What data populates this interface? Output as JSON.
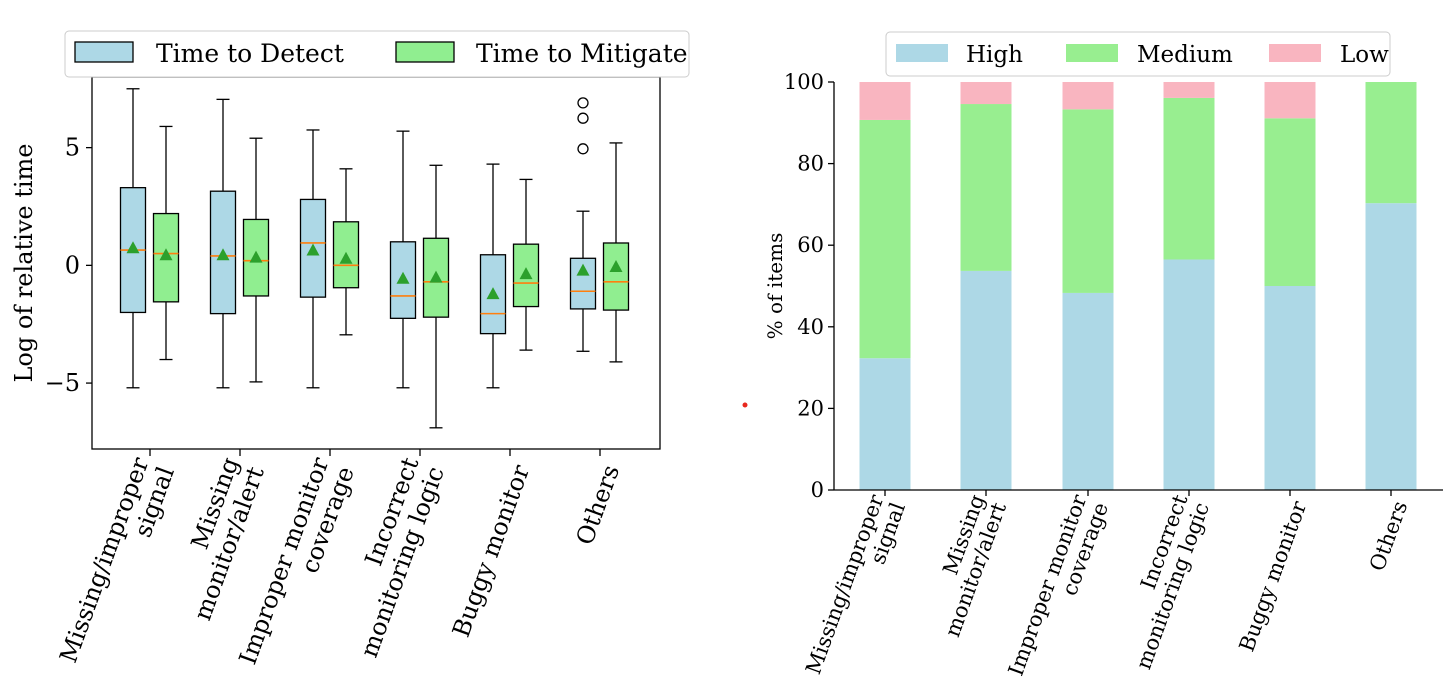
{
  "chart_data": [
    {
      "type": "box",
      "ylabel": "Log of relative time",
      "ylim": [
        -7.8,
        8.0
      ],
      "yticks": [
        -5,
        0,
        5
      ],
      "legend_position": "top",
      "categories": [
        [
          "Missing/improper",
          "signal"
        ],
        [
          "Missing",
          "monitor/alert"
        ],
        [
          "Improper monitor",
          "coverage"
        ],
        [
          "Incorrect",
          "monitoring logic"
        ],
        [
          "Buggy monitor"
        ],
        [
          "Others"
        ]
      ],
      "series": [
        {
          "name": "Time to Detect",
          "color": "#add8e6",
          "boxes": [
            {
              "whisker_low": -5.2,
              "q1": -2.0,
              "median": 0.65,
              "q3": 3.3,
              "whisker_high": 7.5,
              "mean": 0.75,
              "outliers": []
            },
            {
              "whisker_low": -5.2,
              "q1": -2.05,
              "median": 0.4,
              "q3": 3.15,
              "whisker_high": 7.05,
              "mean": 0.45,
              "outliers": []
            },
            {
              "whisker_low": -5.2,
              "q1": -1.35,
              "median": 0.95,
              "q3": 2.8,
              "whisker_high": 5.75,
              "mean": 0.65,
              "outliers": []
            },
            {
              "whisker_low": -5.2,
              "q1": -2.25,
              "median": -1.3,
              "q3": 1.0,
              "whisker_high": 5.7,
              "mean": -0.55,
              "outliers": []
            },
            {
              "whisker_low": -5.2,
              "q1": -2.9,
              "median": -2.05,
              "q3": 0.45,
              "whisker_high": 4.3,
              "mean": -1.2,
              "outliers": []
            },
            {
              "whisker_low": -3.65,
              "q1": -1.85,
              "median": -1.1,
              "q3": 0.3,
              "whisker_high": 2.3,
              "mean": -0.2,
              "outliers": [
                4.95,
                6.25,
                6.9
              ]
            }
          ]
        },
        {
          "name": "Time to Mitigate",
          "color": "#90ee90",
          "boxes": [
            {
              "whisker_low": -4.0,
              "q1": -1.55,
              "median": 0.5,
              "q3": 2.2,
              "whisker_high": 5.9,
              "mean": 0.45,
              "outliers": []
            },
            {
              "whisker_low": -4.95,
              "q1": -1.3,
              "median": 0.2,
              "q3": 1.95,
              "whisker_high": 5.4,
              "mean": 0.35,
              "outliers": []
            },
            {
              "whisker_low": -2.95,
              "q1": -0.95,
              "median": 0.0,
              "q3": 1.85,
              "whisker_high": 4.1,
              "mean": 0.3,
              "outliers": []
            },
            {
              "whisker_low": -6.9,
              "q1": -2.2,
              "median": -0.7,
              "q3": 1.15,
              "whisker_high": 4.25,
              "mean": -0.5,
              "outliers": []
            },
            {
              "whisker_low": -3.6,
              "q1": -1.75,
              "median": -0.75,
              "q3": 0.9,
              "whisker_high": 3.65,
              "mean": -0.35,
              "outliers": []
            },
            {
              "whisker_low": -4.1,
              "q1": -1.9,
              "median": -0.7,
              "q3": 0.95,
              "whisker_high": 5.2,
              "mean": -0.05,
              "outliers": []
            }
          ]
        }
      ],
      "median_color": "#ff7f0e",
      "mean_color": "#2ca02c"
    },
    {
      "type": "stacked_bar",
      "ylabel": "% of items",
      "ylim": [
        0,
        100
      ],
      "yticks": [
        0,
        20,
        40,
        60,
        80,
        100
      ],
      "legend_position": "top",
      "categories": [
        [
          "Missing/improper",
          "signal"
        ],
        [
          "Missing",
          "monitor/alert"
        ],
        [
          "Improper monitor",
          "coverage"
        ],
        [
          "Incorrect",
          "monitoring logic"
        ],
        [
          "Buggy monitor"
        ],
        [
          "Others"
        ]
      ],
      "series": [
        {
          "name": "High",
          "color": "#add8e6",
          "values": [
            32.3,
            53.7,
            48.3,
            56.5,
            50.0,
            70.3
          ]
        },
        {
          "name": "Medium",
          "color": "#98ee90",
          "values": [
            58.4,
            40.9,
            45.0,
            39.6,
            41.1,
            29.7
          ]
        },
        {
          "name": "Low",
          "color": "#f9b5c0",
          "values": [
            9.3,
            5.4,
            6.7,
            3.9,
            8.9,
            0.0
          ]
        }
      ]
    }
  ]
}
